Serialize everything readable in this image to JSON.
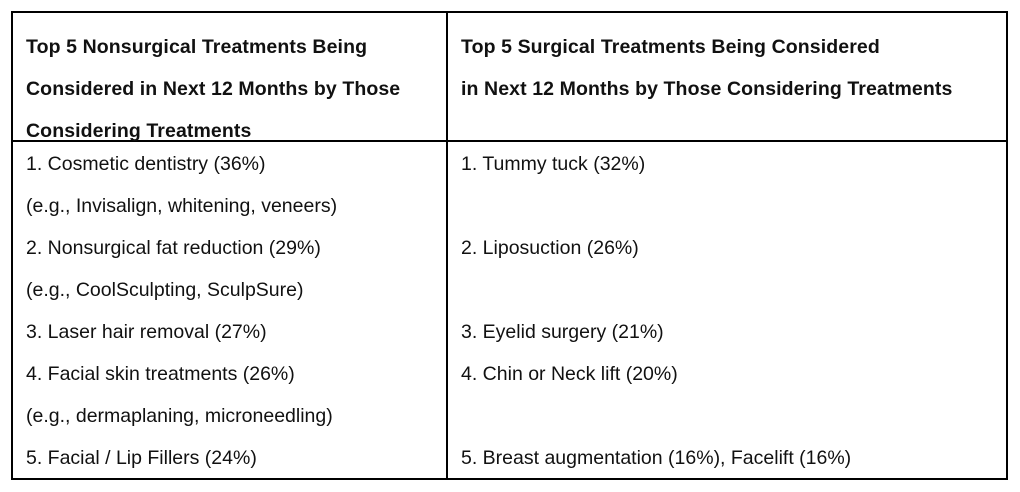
{
  "table": {
    "header_left": [
      "Top 5 Nonsurgical Treatments Being",
      "Considered in Next 12 Months by Those",
      "Considering Treatments"
    ],
    "header_right": [
      "Top 5 Surgical Treatments Being Considered",
      "in Next 12 Months by Those Considering Treatments"
    ],
    "nonsurgical_lines": [
      "1. Cosmetic dentistry (36%)",
      "(e.g., Invisalign, whitening, veneers)",
      "2. Nonsurgical fat reduction (29%)",
      "(e.g., CoolSculpting, SculpSure)",
      "3. Laser hair removal (27%)",
      "4. Facial skin treatments (26%)",
      "(e.g., dermaplaning, microneedling)",
      "5. Facial / Lip Fillers (24%)"
    ],
    "surgical_lines": [
      "1. Tummy tuck (32%)",
      "",
      "2. Liposuction (26%)",
      "",
      "3. Eyelid surgery (21%)",
      "4. Chin or Neck lift (20%)",
      "",
      "5. Breast augmentation (16%), Facelift (16%)"
    ]
  }
}
